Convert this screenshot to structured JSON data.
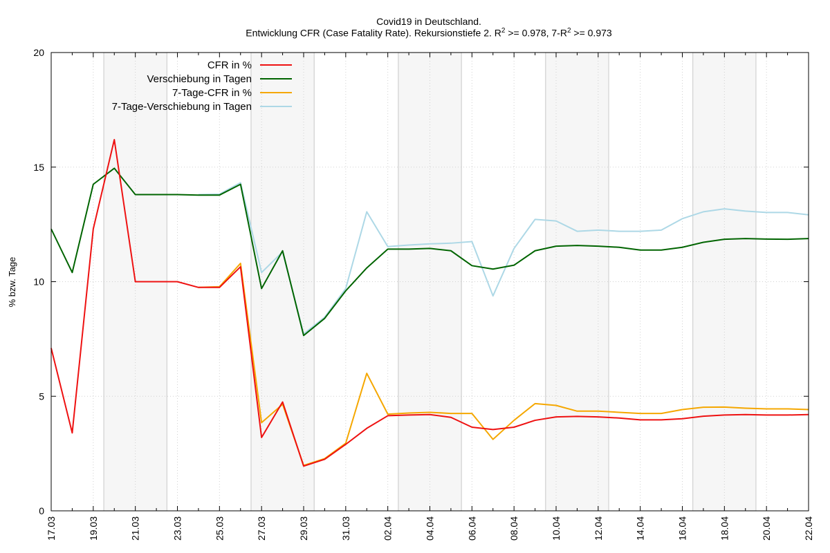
{
  "chart_data": {
    "type": "line",
    "title": "Covid19 in Deutschland.",
    "subtitle_parts": {
      "pre": "Entwicklung CFR (Case Fatality Rate). Rekursionstiefe 2. R",
      "sup1": "2",
      "mid": " >= 0.978, 7-R",
      "sup2": "2",
      "post": " >= 0.973"
    },
    "xlabel": "",
    "ylabel": "% bzw. Tage",
    "ylim": [
      0,
      20
    ],
    "yticks": [
      "0",
      "5",
      "10",
      "15",
      "20"
    ],
    "grid": true,
    "legend_position": "top-right",
    "x": [
      "17.03",
      "18.03",
      "19.03",
      "20.03",
      "21.03",
      "22.03",
      "23.03",
      "24.03",
      "25.03",
      "26.03",
      "27.03",
      "28.03",
      "29.03",
      "30.03",
      "31.03",
      "01.04",
      "02.04",
      "03.04",
      "04.04",
      "05.04",
      "06.04",
      "07.04",
      "08.04",
      "09.04",
      "10.04",
      "11.04",
      "12.04",
      "13.04",
      "14.04",
      "15.04",
      "16.04",
      "17.04",
      "18.04",
      "19.04",
      "20.04",
      "21.04",
      "22.04"
    ],
    "xtick_labels": [
      "17.03",
      "19.03",
      "21.03",
      "23.03",
      "25.03",
      "27.03",
      "29.03",
      "31.03",
      "02.04",
      "04.04",
      "06.04",
      "08.04",
      "10.04",
      "12.04",
      "14.04",
      "16.04",
      "18.04",
      "20.04",
      "22.04"
    ],
    "weekend_bands": [
      [
        "20.03",
        "22.03"
      ],
      [
        "27.03",
        "29.03"
      ],
      [
        "03.04",
        "05.04"
      ],
      [
        "10.04",
        "12.04"
      ],
      [
        "17.04",
        "19.04"
      ]
    ],
    "series": [
      {
        "name": "CFR in %",
        "color": "#ee1111",
        "values": [
          7.1,
          3.4,
          12.3,
          16.2,
          10.0,
          10.0,
          10.0,
          9.75,
          9.75,
          10.65,
          3.2,
          4.75,
          1.95,
          2.25,
          2.9,
          3.6,
          4.15,
          4.18,
          4.2,
          4.08,
          3.65,
          3.55,
          3.65,
          3.95,
          4.1,
          4.12,
          4.1,
          4.05,
          3.97,
          3.97,
          4.02,
          4.13,
          4.18,
          4.2,
          4.18,
          4.18,
          4.2
        ]
      },
      {
        "name": "Verschiebung in Tagen",
        "color": "#006400",
        "values": [
          12.3,
          10.4,
          14.25,
          14.95,
          13.8,
          13.8,
          13.8,
          13.78,
          13.78,
          14.25,
          9.7,
          11.35,
          7.65,
          8.4,
          9.6,
          10.6,
          11.42,
          11.42,
          11.45,
          11.35,
          10.7,
          10.55,
          10.72,
          11.35,
          11.55,
          11.58,
          11.55,
          11.5,
          11.38,
          11.38,
          11.5,
          11.72,
          11.85,
          11.88,
          11.86,
          11.85,
          11.88
        ]
      },
      {
        "name": "7-Tage-CFR in %",
        "color": "#f5a700",
        "values": [
          null,
          null,
          null,
          null,
          null,
          null,
          null,
          9.75,
          9.78,
          10.8,
          3.85,
          4.65,
          1.98,
          2.28,
          2.95,
          6.0,
          4.22,
          4.27,
          4.3,
          4.25,
          4.25,
          3.12,
          3.95,
          4.68,
          4.6,
          4.35,
          4.35,
          4.3,
          4.25,
          4.25,
          4.42,
          4.52,
          4.53,
          4.48,
          4.45,
          4.45,
          4.42
        ]
      },
      {
        "name": "7-Tage-Verschiebung in Tagen",
        "color": "#add8e6",
        "values": [
          null,
          null,
          null,
          null,
          null,
          null,
          null,
          13.8,
          13.82,
          14.32,
          10.4,
          11.3,
          7.72,
          8.45,
          9.7,
          13.05,
          11.53,
          11.6,
          11.65,
          11.68,
          11.75,
          9.38,
          11.45,
          12.72,
          12.65,
          12.2,
          12.25,
          12.2,
          12.2,
          12.25,
          12.75,
          13.05,
          13.18,
          13.08,
          13.02,
          13.02,
          12.92
        ]
      }
    ]
  }
}
